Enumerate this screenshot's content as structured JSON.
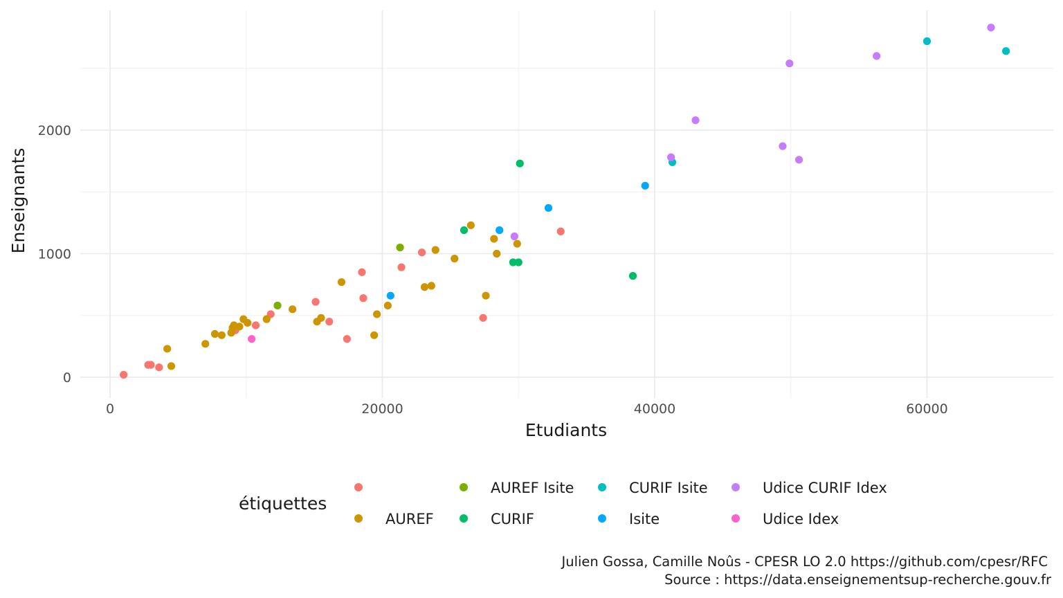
{
  "chart_data": {
    "type": "scatter",
    "xlabel": "Etudiants",
    "ylabel": "Enseignants",
    "xlim": [
      -2000,
      69500
    ],
    "ylim": [
      -150,
      2900
    ],
    "x_ticks": [
      0,
      20000,
      40000,
      60000
    ],
    "y_ticks": [
      0,
      1000,
      2000
    ],
    "grid": true,
    "legend": {
      "title": "étiquettes",
      "placement": "bottom"
    },
    "series": [
      {
        "name": "",
        "color": "#F8766D",
        "points": [
          [
            1000,
            20
          ],
          [
            2800,
            100
          ],
          [
            3000,
            100
          ],
          [
            3600,
            80
          ],
          [
            9200,
            380
          ],
          [
            10700,
            420
          ],
          [
            11800,
            510
          ],
          [
            15100,
            610
          ],
          [
            16100,
            450
          ],
          [
            17400,
            310
          ],
          [
            18500,
            850
          ],
          [
            18600,
            640
          ],
          [
            21400,
            890
          ],
          [
            22900,
            1010
          ],
          [
            27400,
            480
          ],
          [
            33100,
            1180
          ]
        ]
      },
      {
        "name": "AUREF",
        "color": "#CD9600",
        "points": [
          [
            4200,
            230
          ],
          [
            4500,
            90
          ],
          [
            7000,
            270
          ],
          [
            7700,
            350
          ],
          [
            8200,
            340
          ],
          [
            8900,
            360
          ],
          [
            9000,
            400
          ],
          [
            9100,
            420
          ],
          [
            9500,
            410
          ],
          [
            9800,
            470
          ],
          [
            10100,
            440
          ],
          [
            11500,
            470
          ],
          [
            13400,
            550
          ],
          [
            15200,
            450
          ],
          [
            15500,
            480
          ],
          [
            17000,
            770
          ],
          [
            19400,
            340
          ],
          [
            19600,
            510
          ],
          [
            20400,
            580
          ],
          [
            23100,
            730
          ],
          [
            23600,
            740
          ],
          [
            23900,
            1030
          ],
          [
            25300,
            960
          ],
          [
            26500,
            1230
          ],
          [
            27600,
            660
          ],
          [
            28200,
            1120
          ],
          [
            28400,
            1000
          ],
          [
            29900,
            1080
          ]
        ]
      },
      {
        "name": "AUREF Isite",
        "color": "#7CAE00",
        "points": [
          [
            12300,
            580
          ],
          [
            21300,
            1050
          ]
        ]
      },
      {
        "name": "CURIF",
        "color": "#00BE67",
        "points": [
          [
            26000,
            1190
          ],
          [
            29600,
            930
          ],
          [
            30000,
            930
          ],
          [
            30100,
            1730
          ],
          [
            38400,
            820
          ]
        ]
      },
      {
        "name": "CURIF Isite",
        "color": "#00BFC4",
        "points": [
          [
            41300,
            1740
          ],
          [
            60000,
            2720
          ],
          [
            65800,
            2640
          ]
        ]
      },
      {
        "name": "Isite",
        "color": "#00A9FF",
        "points": [
          [
            20600,
            660
          ],
          [
            28600,
            1190
          ],
          [
            32200,
            1370
          ],
          [
            39300,
            1550
          ]
        ]
      },
      {
        "name": "Udice CURIF Idex",
        "color": "#C77CFF",
        "points": [
          [
            29700,
            1140
          ],
          [
            41200,
            1780
          ],
          [
            43000,
            2080
          ],
          [
            49400,
            1870
          ],
          [
            49900,
            2540
          ],
          [
            50600,
            1760
          ],
          [
            56300,
            2600
          ],
          [
            64700,
            2830
          ]
        ]
      },
      {
        "name": "Udice Idex",
        "color": "#FF61CC",
        "points": [
          [
            10400,
            310
          ]
        ]
      }
    ]
  },
  "caption": {
    "line1": "Julien Gossa, Camille Noûs - CPESR LO 2.0 https://github.com/cpesr/RFC",
    "line2": "Source : https://data.enseignementsup-recherche.gouv.fr"
  }
}
